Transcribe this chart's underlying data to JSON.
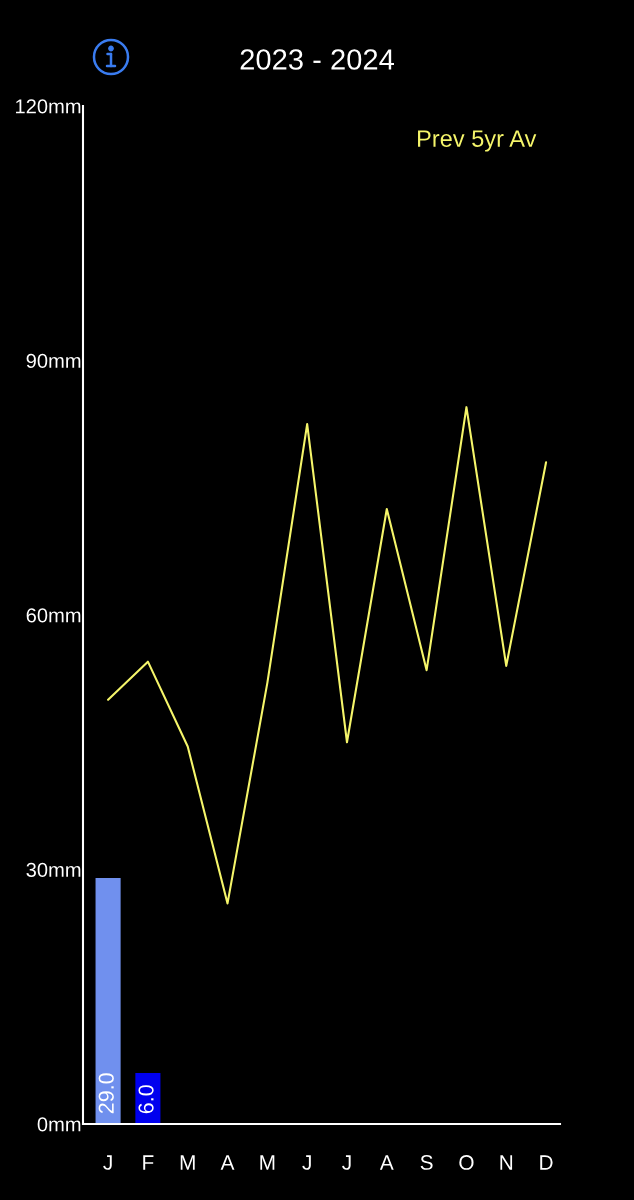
{
  "chart_data": {
    "type": "bar",
    "title": "2023 - 2024",
    "categories": [
      "J",
      "F",
      "M",
      "A",
      "M",
      "J",
      "J",
      "A",
      "S",
      "O",
      "N",
      "D"
    ],
    "series": [
      {
        "values": [
          29.0,
          6.0,
          null,
          null,
          null,
          null,
          null,
          null,
          null,
          null,
          null,
          null
        ],
        "colors": [
          "#7090ee",
          "#0000ee",
          null,
          null,
          null,
          null,
          null,
          null,
          null,
          null,
          null,
          null
        ],
        "value_labels": [
          "29.0",
          "6.0",
          null,
          null,
          null,
          null,
          null,
          null,
          null,
          null,
          null,
          null
        ]
      },
      {
        "type": "line",
        "name": "Prev 5yr Av",
        "color": "#f5f56a",
        "values": [
          50,
          54.5,
          44.5,
          26,
          52,
          82.5,
          45,
          72.5,
          53.5,
          84.5,
          54,
          78
        ]
      }
    ],
    "ylim": [
      0,
      120
    ],
    "yticks": [
      {
        "value": 0,
        "label": "0mm"
      },
      {
        "value": 30,
        "label": "30mm"
      },
      {
        "value": 60,
        "label": "60mm"
      },
      {
        "value": 90,
        "label": "90mm"
      },
      {
        "value": 120,
        "label": "120mm"
      }
    ],
    "legend": "top right",
    "line_style": "solid"
  }
}
